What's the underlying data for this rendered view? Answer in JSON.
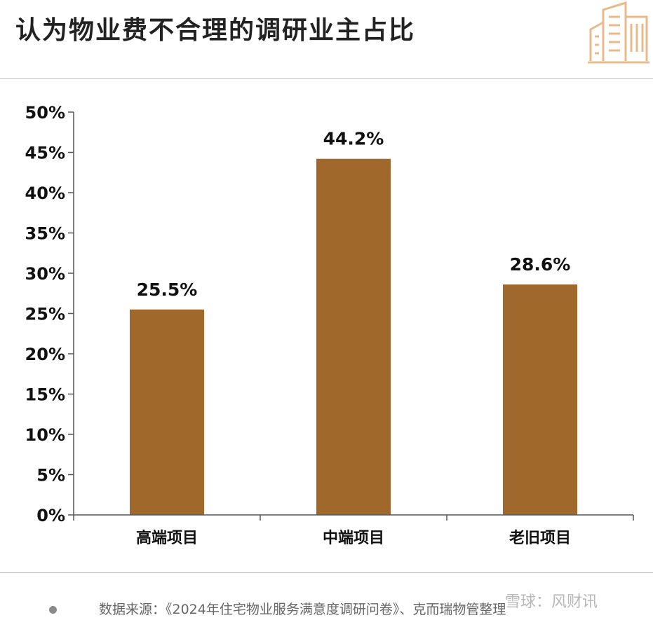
{
  "title": "认为物业费不合理的调研业主占比",
  "icons": {
    "header": "building-icon",
    "source_bullet": "bullet-dot"
  },
  "source": {
    "text": "数据来源：《2024年住宅物业服务满意度调研问卷》、克而瑞物管整理",
    "watermark": "雪球：风财讯"
  },
  "colors": {
    "bar": "#A0692B",
    "axis": "#555555",
    "accent": "#E8B98B"
  },
  "chart_data": {
    "type": "bar",
    "title": "认为物业费不合理的调研业主占比",
    "categories": [
      "高端项目",
      "中端项目",
      "老旧项目"
    ],
    "values": [
      25.5,
      44.2,
      28.6
    ],
    "value_labels": [
      "25.5%",
      "44.2%",
      "28.6%"
    ],
    "yticks": [
      "0%",
      "5%",
      "10%",
      "15%",
      "20%",
      "25%",
      "30%",
      "35%",
      "40%",
      "45%",
      "50%"
    ],
    "ylim": [
      0,
      50
    ],
    "grid": false,
    "legend": "none"
  }
}
